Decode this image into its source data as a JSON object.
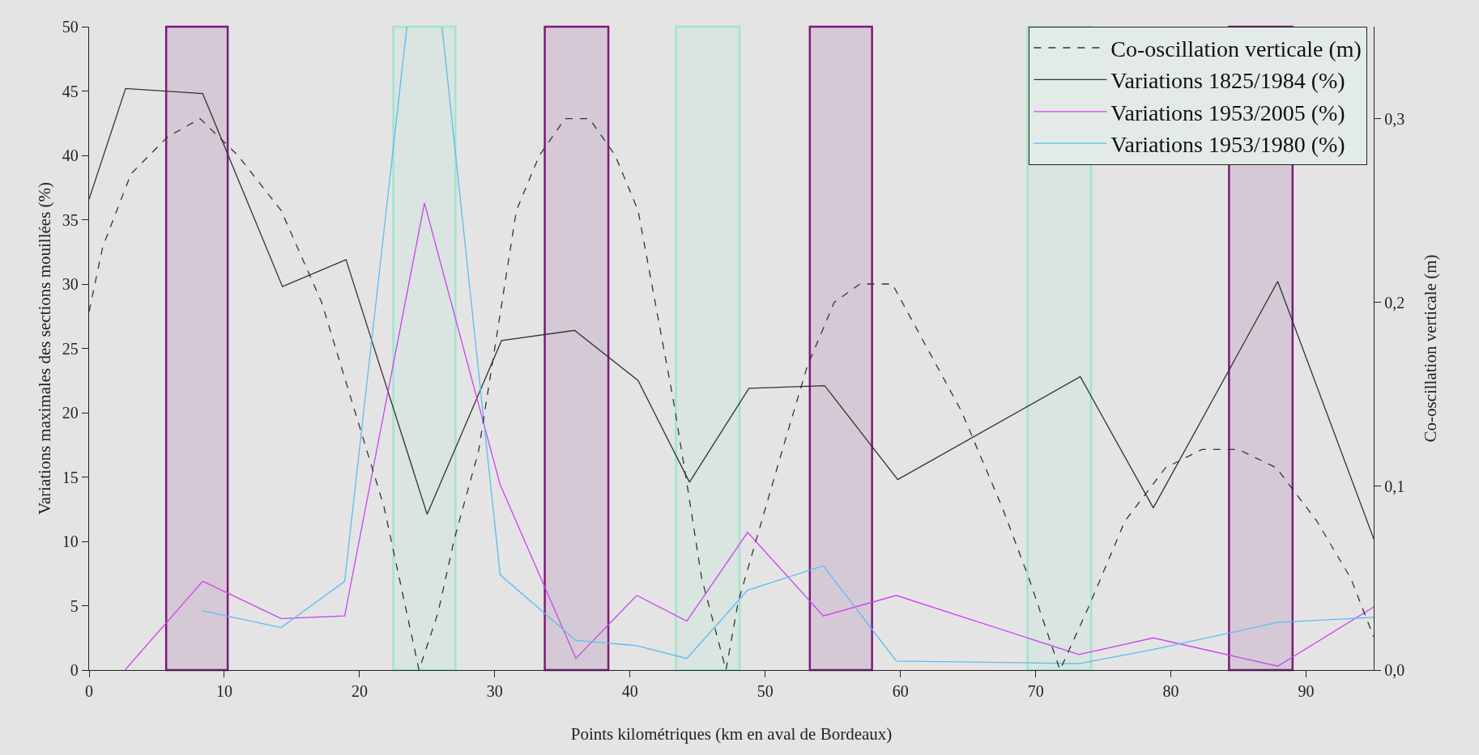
{
  "chart_data": {
    "type": "line",
    "xlabel": "Points kilométriques (km en aval de Bordeaux)",
    "ylabel": "Variations maximales des sections mouillées (%)",
    "y2label": "Co-oscillation verticale (m)",
    "xlim": [
      0,
      95
    ],
    "xticks": [
      0,
      10,
      20,
      30,
      40,
      50,
      60,
      70,
      80,
      90
    ],
    "ylim": [
      0,
      50
    ],
    "yticks": [
      0,
      5,
      10,
      15,
      20,
      25,
      30,
      35,
      40,
      45,
      50
    ],
    "y2lim": [
      0,
      0.35
    ],
    "y2ticks": [
      {
        "value": 0,
        "label": "0,0"
      },
      {
        "value": 0.1,
        "label": "0,1"
      },
      {
        "value": 0.2,
        "label": "0,2"
      },
      {
        "value": 0.3,
        "label": "0,3"
      }
    ],
    "grid": false,
    "legend": "top right",
    "marker": "none",
    "series": [
      {
        "name": "Co-oscillation verticale (m)",
        "color": "#333333",
        "axis": "y2",
        "line_style": "dashed",
        "x": [
          0,
          1.0,
          3.1,
          5.8,
          8.2,
          11.0,
          14.2,
          17.2,
          21.8,
          24.4,
          25.8,
          27.0,
          28.8,
          31.6,
          33.3,
          35.2,
          37.0,
          38.9,
          40.6,
          43.2,
          44.2,
          45.3,
          47.1,
          48.0,
          51.4,
          53.1,
          55.1,
          57.0,
          59.4,
          64.5,
          67.5,
          69.5,
          71.8,
          73.9,
          76.6,
          79.6,
          82.3,
          85.0,
          87.8,
          90.8,
          93.3,
          95
        ],
        "values": [
          0.195,
          0.23,
          0.27,
          0.29,
          0.3,
          0.28,
          0.25,
          0.2,
          0.089,
          0,
          0.031,
          0.071,
          0.119,
          0.25,
          0.28,
          0.3,
          0.3,
          0.28,
          0.25,
          0.147,
          0.102,
          0.05,
          0,
          0.037,
          0.123,
          0.165,
          0.2,
          0.21,
          0.21,
          0.141,
          0.089,
          0.05,
          0,
          0.034,
          0.081,
          0.11,
          0.12,
          0.12,
          0.11,
          0.081,
          0.05,
          0.018
        ]
      },
      {
        "name": "Variations 1825/1984 (%)",
        "color": "#333333",
        "line_style": "solid",
        "x": [
          0,
          2.7,
          8.4,
          14.3,
          19.0,
          25.0,
          30.5,
          35.9,
          40.6,
          44.4,
          48.8,
          54.4,
          59.8,
          73.3,
          78.7,
          87.9,
          95
        ],
        "values": [
          36.6,
          45.2,
          44.8,
          29.8,
          31.9,
          12.1,
          25.6,
          26.4,
          22.5,
          14.6,
          21.9,
          22.1,
          14.8,
          22.8,
          12.6,
          30.2,
          10.2
        ]
      },
      {
        "name": "Variations 1953/2005 (%)",
        "color": "#cc44ee",
        "line_style": "solid",
        "x": [
          2.65,
          8.4,
          14.2,
          18.9,
          24.8,
          30.4,
          36.0,
          40.5,
          44.2,
          48.7,
          54.3,
          59.7,
          73.2,
          78.7,
          87.9,
          95
        ],
        "values": [
          0,
          6.9,
          4.0,
          4.2,
          36.3,
          14.4,
          0.9,
          5.8,
          3.8,
          10.7,
          4.2,
          5.8,
          1.2,
          2.5,
          0.3,
          4.9
        ]
      },
      {
        "name": "Variations 1953/1980 (%)",
        "color": "#5bbcf0",
        "line_style": "solid",
        "x": [
          8.4,
          14.2,
          18.9,
          23.5,
          24.8,
          26.1,
          30.4,
          36.0,
          40.5,
          44.2,
          48.7,
          54.3,
          59.7,
          73.2,
          78.7,
          87.9,
          95
        ],
        "values": [
          4.6,
          3.3,
          6.9,
          50,
          null,
          50,
          7.4,
          2.3,
          1.9,
          0.9,
          6.2,
          8.1,
          0.7,
          0.5,
          1.6,
          3.7,
          4.1
        ]
      }
    ],
    "bands": [
      {
        "axis": "x",
        "from": 5.7,
        "to": 10.25,
        "color": "#7b1a7b"
      },
      {
        "axis": "x",
        "from": 22.5,
        "to": 27.1,
        "color": "#9ee6cc"
      },
      {
        "axis": "x",
        "from": 33.7,
        "to": 38.4,
        "color": "#7b1a7b"
      },
      {
        "axis": "x",
        "from": 43.4,
        "to": 48.1,
        "color": "#9ee6cc"
      },
      {
        "axis": "x",
        "from": 53.3,
        "to": 57.9,
        "color": "#7b1a7b"
      },
      {
        "axis": "x",
        "from": 69.4,
        "to": 74.1,
        "color": "#9ee6cc"
      },
      {
        "axis": "x",
        "from": 84.3,
        "to": 89.0,
        "color": "#7b1a7b"
      }
    ]
  }
}
